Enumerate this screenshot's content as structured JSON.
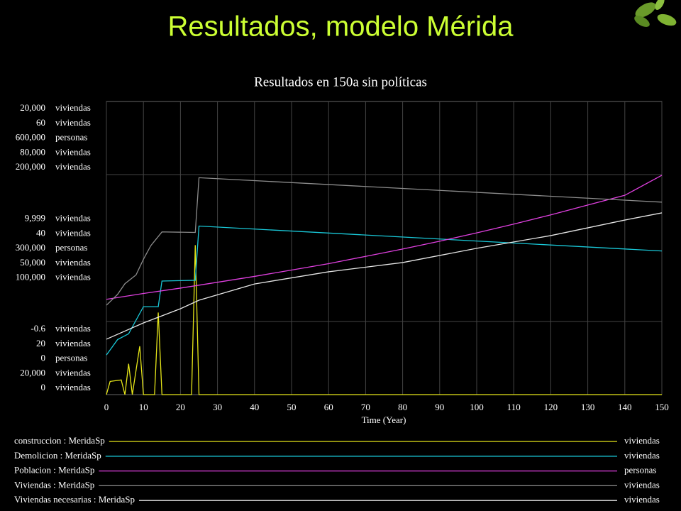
{
  "slide_title": "Resultados, modelo Mérida",
  "chart_data": {
    "type": "line",
    "title": "Resultados en 150a sin políticas",
    "x_label": "Time (Year)",
    "xlim": [
      0,
      150
    ],
    "xticks": [
      0,
      10,
      20,
      30,
      40,
      50,
      60,
      70,
      80,
      90,
      100,
      110,
      120,
      130,
      140,
      150
    ],
    "grid": true,
    "series": [
      {
        "name": "construccion : MeridaSp",
        "unit": "viviendas",
        "color": "#e6e619",
        "ylim": [
          -0.6,
          20000
        ],
        "yticks": [
          -0.6,
          {
            "value": 9999,
            "label": "9,999"
          },
          {
            "value": 20000,
            "label": "20,000"
          }
        ],
        "x": [
          0,
          1,
          4,
          5,
          6,
          7,
          9,
          10,
          13,
          14,
          15,
          23,
          24,
          25,
          150
        ],
        "values": [
          0,
          900,
          1000,
          0,
          2100,
          0,
          3300,
          0,
          0,
          5600,
          0,
          0,
          10200,
          0,
          0
        ]
      },
      {
        "name": "Demolicion : MeridaSp",
        "unit": "viviendas",
        "color": "#19c8d8",
        "ylim": [
          20,
          60
        ],
        "yticks": [
          20,
          40,
          60
        ],
        "x": [
          0,
          3,
          6,
          10,
          14,
          15,
          24,
          25,
          150
        ],
        "values": [
          25.4,
          27.5,
          28.3,
          32.0,
          32.0,
          35.5,
          35.6,
          43.0,
          39.6
        ]
      },
      {
        "name": "Poblacion : MeridaSp",
        "unit": "personas",
        "color": "#e040e0",
        "ylim": [
          0,
          600000
        ],
        "yticks": [
          0,
          {
            "value": 300000,
            "label": "300,000"
          },
          {
            "value": 600000,
            "label": "600,000"
          }
        ],
        "x": [
          0,
          10,
          20,
          30,
          40,
          50,
          60,
          70,
          80,
          90,
          100,
          110,
          120,
          130,
          140,
          150
        ],
        "values": [
          195000,
          207000,
          218000,
          230000,
          242000,
          255000,
          268000,
          283000,
          298000,
          314000,
          331000,
          349000,
          368000,
          388000,
          408000,
          449000
        ]
      },
      {
        "name": "Viviendas : MeridaSp",
        "unit": "viviendas",
        "color": "#8c8c8c",
        "ylim": [
          20000,
          80000
        ],
        "yticks": [
          {
            "value": 20000,
            "label": "20,000"
          },
          {
            "value": 50000,
            "label": "50,000"
          },
          {
            "value": 80000,
            "label": "80,000"
          }
        ],
        "x": [
          0,
          3,
          5,
          8,
          10,
          12,
          15,
          24,
          25,
          150
        ],
        "values": [
          38300,
          40500,
          42700,
          44500,
          47700,
          50500,
          53300,
          53200,
          64400,
          59400
        ]
      },
      {
        "name": "Viviendas necesarias : MeridaSp",
        "unit": "viviendas",
        "color": "#e6e6e6",
        "ylim": [
          0,
          200000
        ],
        "yticks": [
          0,
          {
            "value": 100000,
            "label": "100,000"
          },
          {
            "value": 200000,
            "label": "200,000"
          }
        ],
        "x": [
          0,
          10,
          20,
          25,
          40,
          60,
          80,
          100,
          120,
          140,
          150
        ],
        "values": [
          37800,
          48900,
          58600,
          64400,
          75500,
          83800,
          90100,
          99800,
          108500,
          119100,
          124000
        ]
      }
    ]
  }
}
